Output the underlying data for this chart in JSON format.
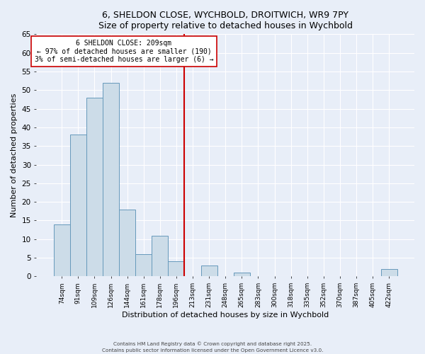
{
  "title1": "6, SHELDON CLOSE, WYCHBOLD, DROITWICH, WR9 7PY",
  "title2": "Size of property relative to detached houses in Wychbold",
  "xlabel": "Distribution of detached houses by size in Wychbold",
  "ylabel": "Number of detached properties",
  "bar_labels": [
    "74sqm",
    "91sqm",
    "109sqm",
    "126sqm",
    "144sqm",
    "161sqm",
    "178sqm",
    "196sqm",
    "213sqm",
    "231sqm",
    "248sqm",
    "265sqm",
    "283sqm",
    "300sqm",
    "318sqm",
    "335sqm",
    "352sqm",
    "370sqm",
    "387sqm",
    "405sqm",
    "422sqm"
  ],
  "bar_values": [
    14,
    38,
    48,
    52,
    18,
    6,
    11,
    4,
    0,
    3,
    0,
    1,
    0,
    0,
    0,
    0,
    0,
    0,
    0,
    0,
    2
  ],
  "bar_color": "#ccdce8",
  "bar_edge_color": "#6699bb",
  "vline_color": "#cc0000",
  "annotation_title": "6 SHELDON CLOSE: 209sqm",
  "annotation_line1": "← 97% of detached houses are smaller (190)",
  "annotation_line2": "3% of semi-detached houses are larger (6) →",
  "annotation_box_facecolor": "#ffffff",
  "annotation_box_edgecolor": "#cc0000",
  "ylim": [
    0,
    65
  ],
  "yticks": [
    0,
    5,
    10,
    15,
    20,
    25,
    30,
    35,
    40,
    45,
    50,
    55,
    60,
    65
  ],
  "bg_color": "#e8eef8",
  "grid_color": "#ffffff",
  "footnote1": "Contains HM Land Registry data © Crown copyright and database right 2025.",
  "footnote2": "Contains public sector information licensed under the Open Government Licence v3.0."
}
